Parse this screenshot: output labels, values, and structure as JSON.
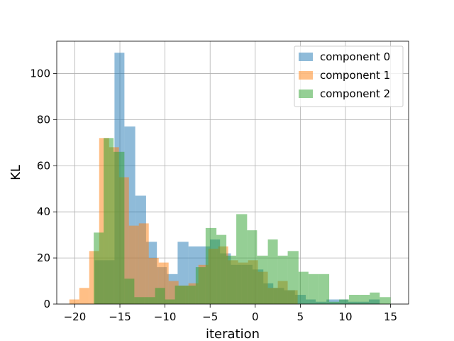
{
  "chart_data": {
    "type": "histogram",
    "xlabel": "iteration",
    "ylabel": "KL",
    "xlim": [
      -22,
      17
    ],
    "ylim": [
      0,
      114
    ],
    "xticks": [
      -20,
      -15,
      -10,
      -5,
      0,
      5,
      10,
      15
    ],
    "yticks": [
      0,
      20,
      40,
      60,
      80,
      100
    ],
    "grid": true,
    "legend_position": "top-right",
    "series": [
      {
        "name": "component 0",
        "color": "#1f77b4",
        "alpha": 0.5,
        "bins": [
          [
            -17.8,
            -16.8,
            19
          ],
          [
            -16.8,
            -15.6,
            19
          ],
          [
            -15.6,
            -14.5,
            109
          ],
          [
            -14.5,
            -13.3,
            77
          ],
          [
            -13.3,
            -12.1,
            47
          ],
          [
            -12.1,
            -10.9,
            27
          ],
          [
            -10.9,
            -9.8,
            16
          ],
          [
            -9.8,
            -8.6,
            13
          ],
          [
            -8.6,
            -7.4,
            27
          ],
          [
            -7.4,
            -6.2,
            25
          ],
          [
            -6.2,
            -5.0,
            25
          ],
          [
            -5.0,
            -3.9,
            28
          ],
          [
            -3.9,
            -2.7,
            22
          ],
          [
            -2.7,
            -1.5,
            17
          ],
          [
            -1.5,
            -0.3,
            17
          ],
          [
            -0.3,
            0.9,
            15
          ],
          [
            0.9,
            2.0,
            9
          ],
          [
            2.0,
            3.2,
            7
          ],
          [
            3.2,
            4.4,
            6
          ],
          [
            4.4,
            5.6,
            4
          ],
          [
            5.6,
            6.7,
            2
          ],
          [
            6.7,
            7.9,
            1
          ],
          [
            7.9,
            9.1,
            2
          ],
          [
            9.1,
            10.3,
            2
          ],
          [
            10.3,
            11.4,
            1
          ],
          [
            11.4,
            12.6,
            1
          ],
          [
            12.6,
            13.8,
            2
          ]
        ]
      },
      {
        "name": "component 1",
        "color": "#ff7f0e",
        "alpha": 0.5,
        "bins": [
          [
            -20.6,
            -19.5,
            2
          ],
          [
            -19.5,
            -18.4,
            7
          ],
          [
            -18.4,
            -17.3,
            23
          ],
          [
            -17.3,
            -16.2,
            72
          ],
          [
            -16.2,
            -15.1,
            68
          ],
          [
            -15.1,
            -14.0,
            55
          ],
          [
            -14.0,
            -12.9,
            34
          ],
          [
            -12.9,
            -11.8,
            35
          ],
          [
            -11.8,
            -10.7,
            20
          ],
          [
            -10.7,
            -9.6,
            18
          ],
          [
            -9.6,
            -8.5,
            10
          ],
          [
            -8.5,
            -7.4,
            8
          ],
          [
            -7.4,
            -6.3,
            9
          ],
          [
            -6.3,
            -5.2,
            17
          ],
          [
            -5.2,
            -4.1,
            24
          ],
          [
            -4.1,
            -3.0,
            25
          ],
          [
            -3.0,
            -1.9,
            19
          ],
          [
            -1.9,
            -0.8,
            18
          ],
          [
            -0.8,
            0.3,
            19
          ],
          [
            0.3,
            1.4,
            14
          ],
          [
            1.4,
            2.5,
            7
          ],
          [
            2.5,
            3.6,
            10
          ],
          [
            3.6,
            4.7,
            6
          ]
        ]
      },
      {
        "name": "component 2",
        "color": "#2ca02c",
        "alpha": 0.5,
        "bins": [
          [
            -17.9,
            -16.8,
            31
          ],
          [
            -16.8,
            -15.7,
            72
          ],
          [
            -15.7,
            -14.5,
            66
          ],
          [
            -14.5,
            -13.4,
            11
          ],
          [
            -13.4,
            -12.3,
            3
          ],
          [
            -12.3,
            -11.1,
            3
          ],
          [
            -11.1,
            -10.0,
            7
          ],
          [
            -10.0,
            -8.9,
            2
          ],
          [
            -8.9,
            -7.7,
            8
          ],
          [
            -7.7,
            -6.6,
            8
          ],
          [
            -6.6,
            -5.5,
            16
          ],
          [
            -5.5,
            -4.3,
            33
          ],
          [
            -4.3,
            -3.2,
            30
          ],
          [
            -3.2,
            -2.1,
            21
          ],
          [
            -2.1,
            -0.9,
            39
          ],
          [
            -0.9,
            0.2,
            32
          ],
          [
            0.2,
            1.4,
            21
          ],
          [
            1.4,
            2.5,
            28
          ],
          [
            2.5,
            3.6,
            21
          ],
          [
            3.6,
            4.8,
            23
          ],
          [
            4.8,
            5.9,
            14
          ],
          [
            5.9,
            7.0,
            13
          ],
          [
            7.0,
            8.2,
            13
          ],
          [
            8.2,
            9.3,
            1
          ],
          [
            9.3,
            10.4,
            2
          ],
          [
            10.4,
            11.6,
            4
          ],
          [
            11.6,
            12.7,
            4
          ],
          [
            12.7,
            13.8,
            5
          ],
          [
            13.8,
            15.0,
            3
          ]
        ]
      }
    ]
  }
}
